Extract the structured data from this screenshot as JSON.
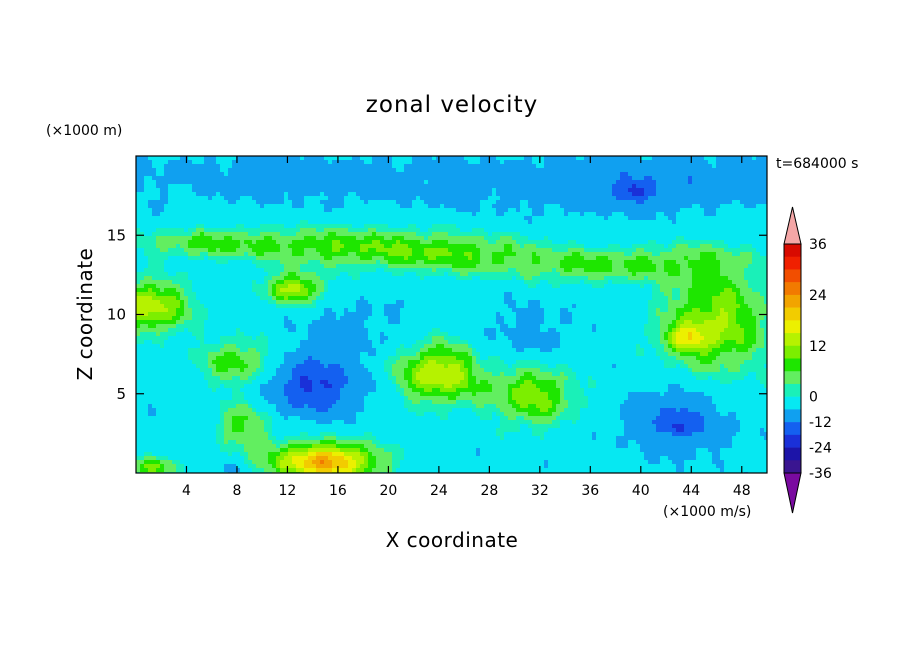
{
  "chart_data": {
    "type": "heatmap",
    "title": "zonal velocity",
    "xlabel": "X coordinate",
    "ylabel": "Z coordinate",
    "x_unit": "(×1000 m/s)",
    "y_unit": "(×1000 m)",
    "time_label": "t=684000 s",
    "xlim": [
      0,
      50
    ],
    "ylim": [
      0,
      20
    ],
    "x_ticks": [
      4,
      8,
      12,
      16,
      20,
      24,
      28,
      32,
      36,
      40,
      44,
      48
    ],
    "y_ticks": [
      5,
      10,
      15
    ],
    "colorbar": {
      "levels": [
        -42,
        -36,
        -30,
        -24,
        -18,
        -12,
        -6,
        0,
        3,
        6,
        9,
        12,
        15,
        18,
        21,
        24,
        27,
        30,
        33,
        36,
        42
      ],
      "labels": [
        36,
        24,
        12,
        0,
        -12,
        -24,
        -36
      ],
      "colors": [
        "#7a0aa0",
        "#3a1590",
        "#1c14a8",
        "#1a30d8",
        "#1460f0",
        "#10a0f0",
        "#06e8f2",
        "#1af0b8",
        "#62ee60",
        "#1ee600",
        "#7cee00",
        "#b6f200",
        "#ecf000",
        "#f2cc00",
        "#f2a400",
        "#f27a00",
        "#f24e00",
        "#f02000",
        "#d80a00",
        "#f4a6a6"
      ],
      "extend": "both"
    },
    "field": {
      "background": -4,
      "features": [
        {
          "x": 25,
          "z": 18.4,
          "value": -8,
          "sx": 26,
          "sz": 1.8
        },
        {
          "x": 10,
          "z": 19.0,
          "value": -6,
          "sx": 8,
          "sz": 1.2
        },
        {
          "x": 44,
          "z": 18.5,
          "value": -7,
          "sx": 9,
          "sz": 1.8
        },
        {
          "x": 38,
          "z": 17.5,
          "value": -6,
          "sx": 8,
          "sz": 1.5
        },
        {
          "x": 39.5,
          "z": 17.8,
          "value": -14,
          "sx": 1.4,
          "sz": 0.6
        },
        {
          "x": 5,
          "z": 14.5,
          "value": 5,
          "sx": 6,
          "sz": 1.0
        },
        {
          "x": 16,
          "z": 14.3,
          "value": 7,
          "sx": 8,
          "sz": 1.4
        },
        {
          "x": 26,
          "z": 13.8,
          "value": 6,
          "sx": 7,
          "sz": 1.4
        },
        {
          "x": 36,
          "z": 13.0,
          "value": 5,
          "sx": 6,
          "sz": 1.2
        },
        {
          "x": 44,
          "z": 13.5,
          "value": 2,
          "sx": 6,
          "sz": 1.2
        },
        {
          "x": 12.5,
          "z": 11.6,
          "value": 13,
          "sx": 2.5,
          "sz": 1.0
        },
        {
          "x": 1,
          "z": 10.5,
          "value": 14,
          "sx": 3.5,
          "sz": 1.8
        },
        {
          "x": 46,
          "z": 9.5,
          "value": 12,
          "sx": 4.5,
          "sz": 3.5
        },
        {
          "x": 43.5,
          "z": 8.5,
          "value": 7,
          "sx": 1.8,
          "sz": 0.8
        },
        {
          "x": 31,
          "z": 8.3,
          "value": -9,
          "sx": 3.5,
          "sz": 2.2
        },
        {
          "x": 17,
          "z": 9.0,
          "value": -8,
          "sx": 4,
          "sz": 2.0
        },
        {
          "x": 8,
          "z": 7.0,
          "value": 8,
          "sx": 3,
          "sz": 1.6
        },
        {
          "x": 14,
          "z": 5.5,
          "value": -19,
          "sx": 3.5,
          "sz": 1.8
        },
        {
          "x": 24,
          "z": 6.3,
          "value": 15,
          "sx": 3.5,
          "sz": 2.0
        },
        {
          "x": 31.5,
          "z": 5.0,
          "value": 11,
          "sx": 3.5,
          "sz": 2.2
        },
        {
          "x": 43,
          "z": 3.5,
          "value": -14,
          "sx": 4,
          "sz": 2.0
        },
        {
          "x": 43,
          "z": 2.8,
          "value": -12,
          "sx": 0.8,
          "sz": 0.5
        },
        {
          "x": 8.5,
          "z": 3.0,
          "value": 7,
          "sx": 2.5,
          "sz": 1.6
        },
        {
          "x": 15,
          "z": 0.7,
          "value": 22,
          "sx": 4.5,
          "sz": 1.3
        },
        {
          "x": 1.5,
          "z": 0.4,
          "value": 9,
          "sx": 2,
          "sz": 0.7
        },
        {
          "x": 7.5,
          "z": 0.3,
          "value": -12,
          "sx": 0.7,
          "sz": 0.4
        }
      ]
    }
  }
}
